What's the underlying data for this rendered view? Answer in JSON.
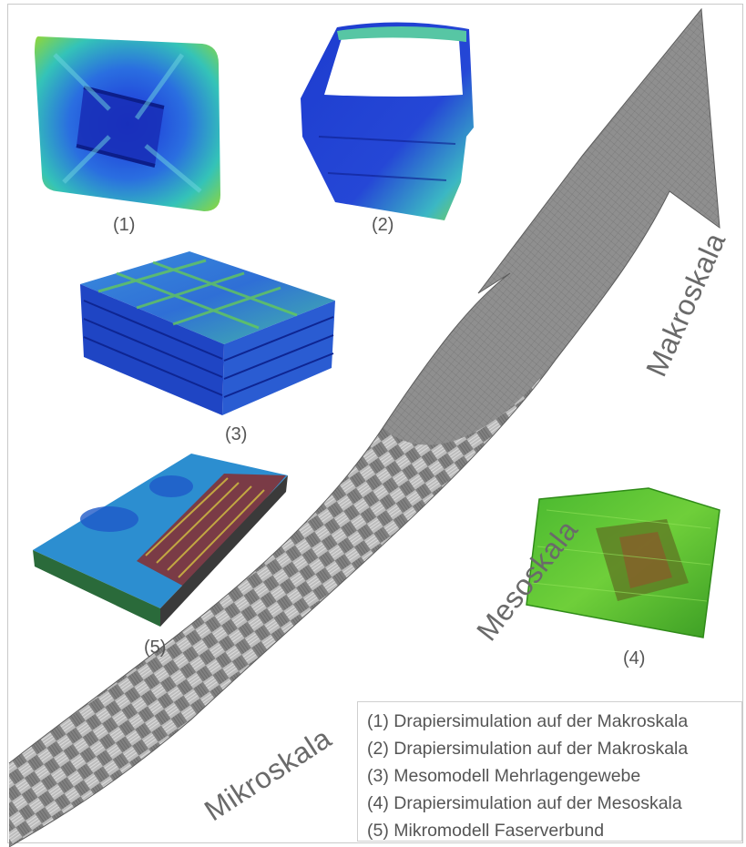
{
  "labels": {
    "p1": "(1)",
    "p2": "(2)",
    "p3": "(3)",
    "p4": "(4)",
    "p5": "(5)"
  },
  "scales": {
    "micro": "Mikroskala",
    "meso": "Mesoskala",
    "macro": "Makroskala"
  },
  "legend": [
    "(1) Drapiersimulation auf der Makroskala",
    "(2) Drapiersimulation auf der Makroskala",
    "(3) Mesomodell Mehrlagengewebe",
    "(4) Drapiersimulation auf der Mesoskala",
    "(5) Mikromodell Faserverbund"
  ],
  "colors": {
    "arrow": "#8c8c8c",
    "fe_blue": "#1f3fd0",
    "fe_green": "#6ac23a",
    "text": "#555555"
  }
}
